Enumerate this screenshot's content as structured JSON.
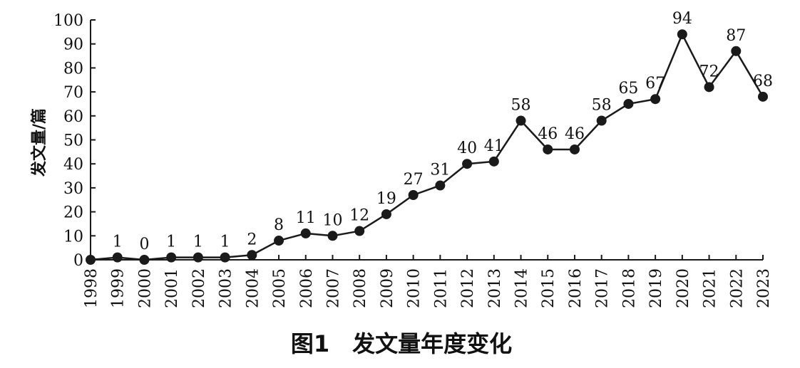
{
  "chart_data": {
    "type": "line",
    "title": "图1　发文量年度变化",
    "xlabel": "",
    "ylabel": "发文量/篇",
    "ylim": [
      0,
      100
    ],
    "yticks": [
      0,
      10,
      20,
      30,
      40,
      50,
      60,
      70,
      80,
      90,
      100
    ],
    "grid": false,
    "categories": [
      "1998",
      "1999",
      "2000",
      "2001",
      "2002",
      "2003",
      "2004",
      "2005",
      "2006",
      "2007",
      "2008",
      "2009",
      "2010",
      "2011",
      "2012",
      "2013",
      "2014",
      "2015",
      "2016",
      "2017",
      "2018",
      "2019",
      "2020",
      "2021",
      "2022",
      "2023"
    ],
    "values": [
      0,
      1,
      0,
      1,
      1,
      1,
      2,
      8,
      11,
      10,
      12,
      19,
      27,
      31,
      40,
      41,
      58,
      46,
      46,
      58,
      65,
      67,
      94,
      72,
      87,
      68
    ],
    "data_labels": [
      "",
      "1",
      "0",
      "1",
      "1",
      "1",
      "2",
      "8",
      "11",
      "10",
      "12",
      "19",
      "27",
      "31",
      "40",
      "41",
      "58",
      "46",
      "46",
      "58",
      "65",
      "67",
      "94",
      "72",
      "87",
      "68"
    ],
    "line_color": "#1a1a1a",
    "marker_color": "#1a1a1a"
  }
}
